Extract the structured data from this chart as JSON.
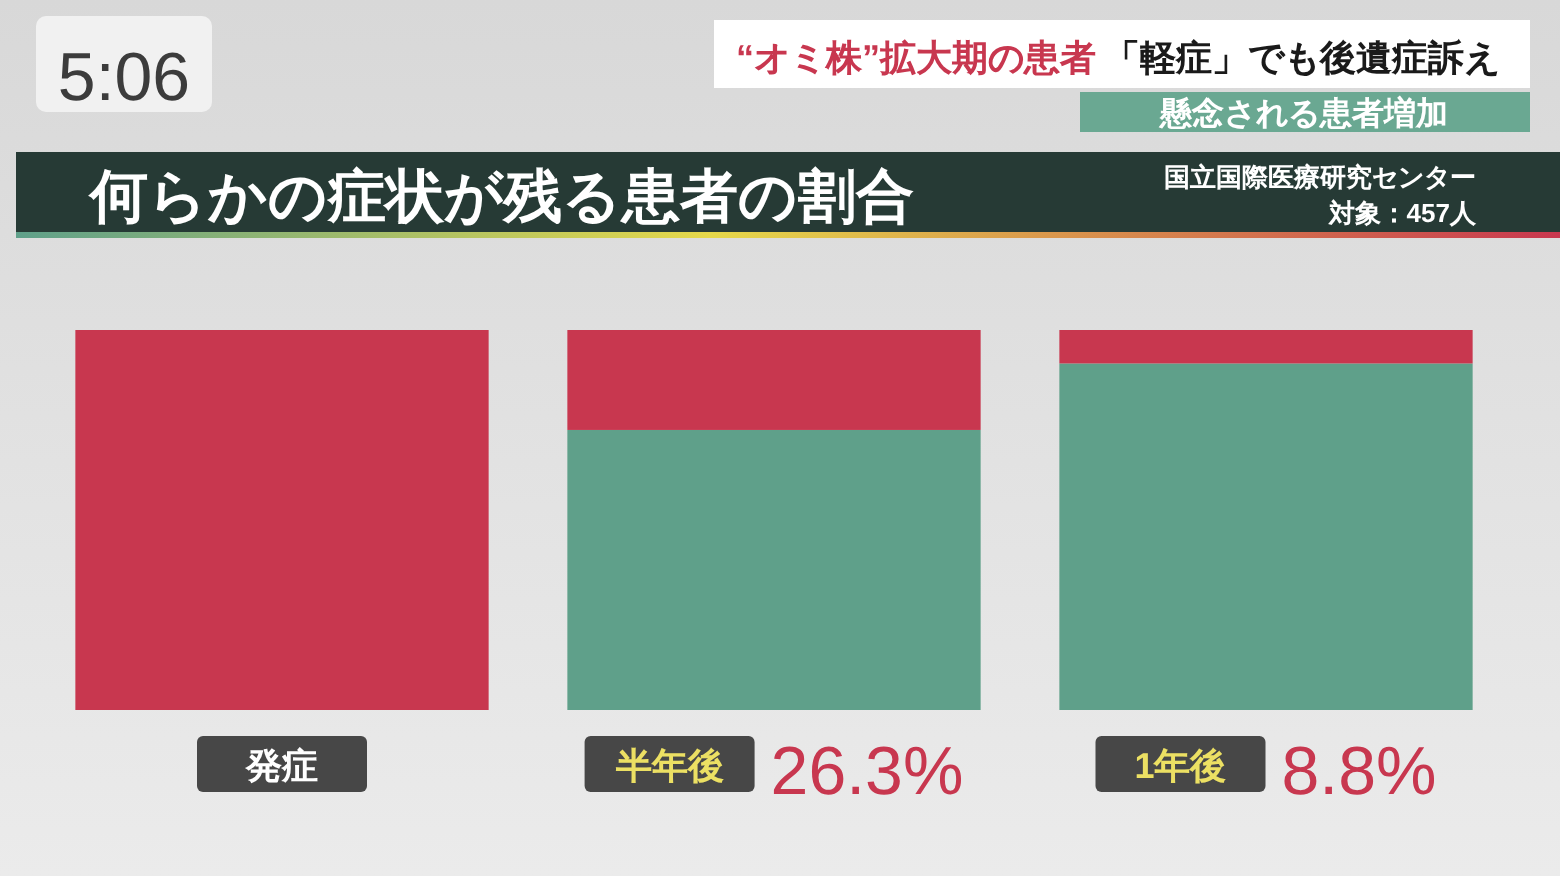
{
  "chart_data": {
    "type": "bar",
    "title": "何らかの症状が残る患者の割合",
    "categories": [
      "発症",
      "半年後",
      "1年後"
    ],
    "stacked": true,
    "ylim": [
      0,
      100
    ],
    "tick_labels": "x",
    "series": [
      {
        "color": "#5fa08a",
        "values": [
          null,
          73.7,
          91.2
        ]
      },
      {
        "color": "#c8374f",
        "values": [
          100,
          26.3,
          8.8
        ],
        "value_labels": [
          null,
          "26.3%",
          "8.8%"
        ]
      }
    ],
    "annotations": [
      "5:06",
      "“オミ株”拡大期の患者",
      "「軽症」でも後遺症訴え",
      "懸念される患者増加",
      "国立国際医療研究センター",
      "対象：457人"
    ]
  }
}
